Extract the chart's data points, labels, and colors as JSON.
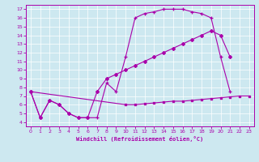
{
  "xlabel": "Windchill (Refroidissement éolien,°C)",
  "bg_color": "#cde8f0",
  "line_color": "#aa00aa",
  "xlim": [
    -0.5,
    23.5
  ],
  "ylim": [
    3.5,
    17.5
  ],
  "xticks": [
    0,
    1,
    2,
    3,
    4,
    5,
    6,
    7,
    8,
    9,
    10,
    11,
    12,
    13,
    14,
    15,
    16,
    17,
    18,
    19,
    20,
    21,
    22,
    23
  ],
  "yticks": [
    4,
    5,
    6,
    7,
    8,
    9,
    10,
    11,
    12,
    13,
    14,
    15,
    16,
    17
  ],
  "curve1_x": [
    0,
    1,
    2,
    3,
    4,
    5,
    6,
    7,
    8,
    9,
    10,
    11,
    12,
    13,
    14,
    15,
    16,
    17,
    18,
    19,
    20,
    21
  ],
  "curve1_y": [
    7.5,
    4.5,
    6.5,
    6.0,
    5.0,
    4.5,
    4.5,
    4.5,
    8.5,
    7.5,
    11.5,
    16.0,
    16.5,
    16.7,
    17.0,
    17.0,
    17.0,
    16.7,
    16.5,
    16.0,
    11.5,
    7.5
  ],
  "curve2_x": [
    0,
    1,
    2,
    3,
    4,
    5,
    6,
    7,
    8,
    9,
    10,
    11,
    12,
    13,
    14,
    15,
    16,
    17,
    18,
    19,
    20,
    21
  ],
  "curve2_y": [
    7.5,
    4.5,
    6.5,
    6.0,
    5.0,
    4.5,
    4.5,
    7.5,
    9.0,
    9.5,
    10.0,
    10.5,
    11.0,
    11.5,
    12.0,
    12.5,
    13.0,
    13.5,
    14.0,
    14.5,
    14.0,
    11.5
  ],
  "curve3_x": [
    0,
    10,
    11,
    12,
    13,
    14,
    15,
    16,
    17,
    18,
    19,
    20,
    21,
    22,
    23
  ],
  "curve3_y": [
    7.5,
    6.0,
    6.0,
    6.1,
    6.2,
    6.3,
    6.4,
    6.4,
    6.5,
    6.6,
    6.7,
    6.8,
    6.9,
    7.0,
    7.0
  ]
}
